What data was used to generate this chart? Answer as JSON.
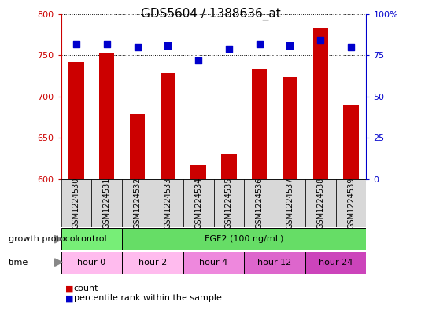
{
  "title": "GDS5604 / 1388636_at",
  "samples": [
    "GSM1224530",
    "GSM1224531",
    "GSM1224532",
    "GSM1224533",
    "GSM1224534",
    "GSM1224535",
    "GSM1224536",
    "GSM1224537",
    "GSM1224538",
    "GSM1224539"
  ],
  "count_values": [
    742,
    752,
    679,
    728,
    617,
    630,
    733,
    724,
    783,
    689
  ],
  "percentile_values": [
    82,
    82,
    80,
    81,
    72,
    79,
    82,
    81,
    84,
    80
  ],
  "ylim_left": [
    600,
    800
  ],
  "ylim_right": [
    0,
    100
  ],
  "yticks_left": [
    600,
    650,
    700,
    750,
    800
  ],
  "yticks_right": [
    0,
    25,
    50,
    75,
    100
  ],
  "bar_color": "#cc0000",
  "dot_color": "#0000cc",
  "bar_width": 0.5,
  "dot_size": 30,
  "growth_protocol_colors": [
    "#77ee77",
    "#66dd66"
  ],
  "time_colors": [
    "#ffbbee",
    "#ffbbee",
    "#ee88dd",
    "#dd66cc",
    "#cc44bb"
  ],
  "legend_count_color": "#cc0000",
  "legend_pct_color": "#0000cc",
  "title_fontsize": 11,
  "tick_fontsize": 8,
  "label_fontsize": 8,
  "sample_label_fontsize": 7,
  "row_label_fontsize": 8,
  "annotation_row_fontsize": 8,
  "gray_bg": "#d8d8d8"
}
